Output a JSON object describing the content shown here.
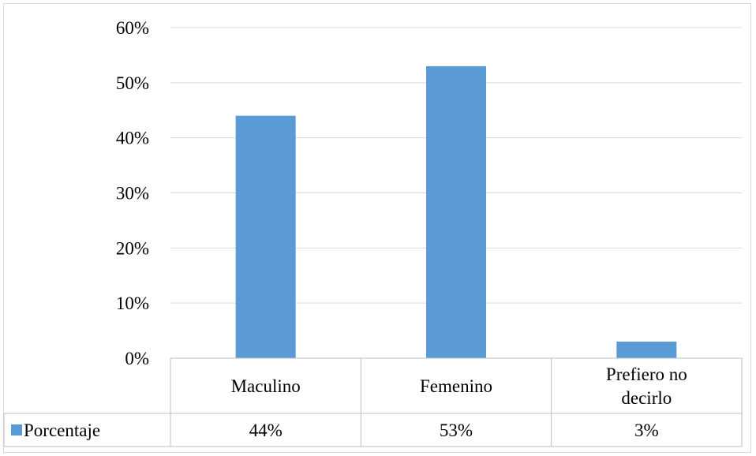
{
  "chart_data": {
    "type": "bar",
    "categories": [
      "Maculino",
      "Femenino",
      "Prefiero no decirlo"
    ],
    "category_lines": [
      [
        "Maculino"
      ],
      [
        "Femenino"
      ],
      [
        "Prefiero no",
        "decirlo"
      ]
    ],
    "series": [
      {
        "name": "Porcentaje",
        "values": [
          44,
          53,
          3
        ],
        "value_labels": [
          "44%",
          "53%",
          "3%"
        ]
      }
    ],
    "y_ticks": [
      "0%",
      "10%",
      "20%",
      "30%",
      "40%",
      "50%",
      "60%"
    ],
    "ylim": [
      0,
      60
    ],
    "grid": true,
    "legend": "data-table-left",
    "data_table": true,
    "colors": {
      "bar": "#5b9bd5",
      "grid": "#d9d9d9",
      "table_border": "#bfbfbf"
    }
  }
}
